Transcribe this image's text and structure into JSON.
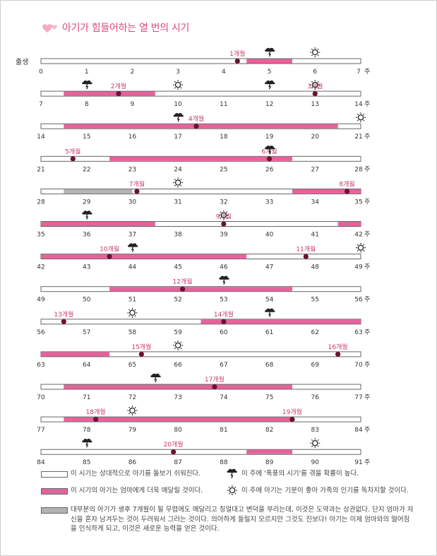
{
  "title": "아기가 힘들어하는 열 번의 시기",
  "birth_label": "출생",
  "week_unit": "주",
  "colors": {
    "pink": "#e8619a",
    "gray": "#b3b3b3",
    "dot": "#6b1330",
    "label": "#c9386f",
    "title": "#d94a7a",
    "heart": "#f4a9c4"
  },
  "chart_data": {
    "type": "timeline",
    "x_unit": "weeks",
    "rows": [
      {
        "start": 0,
        "end": 7,
        "segments": [
          {
            "from": 4.5,
            "to": 5.5,
            "type": "pink"
          }
        ],
        "months": [
          {
            "label": "1개월",
            "week": 4.3
          }
        ],
        "storms": [
          5
        ],
        "suns": [
          6
        ]
      },
      {
        "start": 7,
        "end": 14,
        "segments": [
          {
            "from": 7.5,
            "to": 9.5,
            "type": "pink"
          }
        ],
        "months": [
          {
            "label": "2개월",
            "week": 8.7
          },
          {
            "label": "3개월",
            "week": 13
          }
        ],
        "storms": [
          8,
          12
        ],
        "suns": [
          10,
          13
        ]
      },
      {
        "start": 14,
        "end": 21,
        "segments": [
          {
            "from": 14.5,
            "to": 20.5,
            "type": "pink"
          }
        ],
        "months": [
          {
            "label": "4개월",
            "week": 17.4
          }
        ],
        "storms": [
          17
        ],
        "suns": [
          21
        ]
      },
      {
        "start": 21,
        "end": 28,
        "segments": [
          {
            "from": 22.5,
            "to": 26.5,
            "type": "pink"
          }
        ],
        "months": [
          {
            "label": "5개월",
            "week": 21.7
          },
          {
            "label": "6개월",
            "week": 26
          }
        ],
        "storms": [
          26
        ],
        "suns": []
      },
      {
        "start": 28,
        "end": 35,
        "segments": [
          {
            "from": 28.5,
            "to": 30,
            "type": "gray"
          },
          {
            "from": 33.5,
            "to": 35,
            "type": "pink"
          }
        ],
        "months": [
          {
            "label": "7개월",
            "week": 30.1
          },
          {
            "label": "8개월",
            "week": 34.7
          }
        ],
        "storms": [],
        "suns": [
          31
        ]
      },
      {
        "start": 35,
        "end": 42,
        "segments": [
          {
            "from": 35,
            "to": 37.5,
            "type": "pink"
          },
          {
            "from": 41.5,
            "to": 42,
            "type": "pink"
          }
        ],
        "months": [
          {
            "label": "9개월",
            "week": 39
          }
        ],
        "storms": [
          36
        ],
        "suns": [
          39
        ]
      },
      {
        "start": 42,
        "end": 49,
        "segments": [
          {
            "from": 42,
            "to": 46.5,
            "type": "pink"
          }
        ],
        "months": [
          {
            "label": "10개월",
            "week": 43.5
          },
          {
            "label": "11개월",
            "week": 47.8
          }
        ],
        "storms": [
          44
        ],
        "suns": [
          49
        ]
      },
      {
        "start": 49,
        "end": 56,
        "segments": [
          {
            "from": 50.5,
            "to": 54.5,
            "type": "pink"
          }
        ],
        "months": [
          {
            "label": "12개월",
            "week": 52.1
          }
        ],
        "storms": [
          53
        ],
        "suns": []
      },
      {
        "start": 56,
        "end": 63,
        "segments": [
          {
            "from": 59.5,
            "to": 63,
            "type": "pink"
          }
        ],
        "months": [
          {
            "label": "13개월",
            "week": 56.5
          },
          {
            "label": "14개월",
            "week": 60
          }
        ],
        "storms": [
          61
        ],
        "suns": [
          58
        ]
      },
      {
        "start": 63,
        "end": 70,
        "segments": [
          {
            "from": 63,
            "to": 64.5,
            "type": "pink"
          }
        ],
        "months": [
          {
            "label": "15개월",
            "week": 65.2
          },
          {
            "label": "16개월",
            "week": 69.5
          }
        ],
        "storms": [],
        "suns": [
          66
        ]
      },
      {
        "start": 70,
        "end": 77,
        "segments": [
          {
            "from": 70.5,
            "to": 75.5,
            "type": "pink"
          }
        ],
        "months": [
          {
            "label": "17개월",
            "week": 73.8
          }
        ],
        "storms": [
          72.5
        ],
        "suns": []
      },
      {
        "start": 77,
        "end": 84,
        "segments": [
          {
            "from": 77.5,
            "to": 82.5,
            "type": "pink"
          }
        ],
        "months": [
          {
            "label": "18개월",
            "week": 78.2
          },
          {
            "label": "19개월",
            "week": 82.5
          }
        ],
        "storms": [],
        "suns": [
          79
        ]
      },
      {
        "start": 84,
        "end": 91,
        "segments": [
          {
            "from": 88.5,
            "to": 89.5,
            "type": "pink"
          }
        ],
        "months": [
          {
            "label": "20개월",
            "week": 86.9
          }
        ],
        "storms": [
          85
        ],
        "suns": [
          90
        ]
      }
    ]
  },
  "legend": {
    "white": "이 시기는 상대적으로 아기를 돌보기 쉬워진다.",
    "pink": "이 시기의 아기는 엄마에게 더욱 매달릴 것이다.",
    "gray": "대부분의 아기가 생후 7개월이 될 무렵에도 매달리고 칭얼대고 변덕을 부리는데, 이것은 도약과는 상관없다. 단지 엄마가 자신을 혼자 남겨두는 것이 두려워서 그러는 것이다. 의아하게 들릴지 모르지만 그것도 진보다! 아기는 이제 엄마와의 떨어짐을 인식하게 되고, 이것은 새로운 능력을 얻은 것이다.",
    "storm": "이 주에 '폭풍의 시기'를 겪을 확률이 높다.",
    "sun": "이 주에 아기는 기분이 좋아 가족의 인기를 독차지할 것이다."
  }
}
